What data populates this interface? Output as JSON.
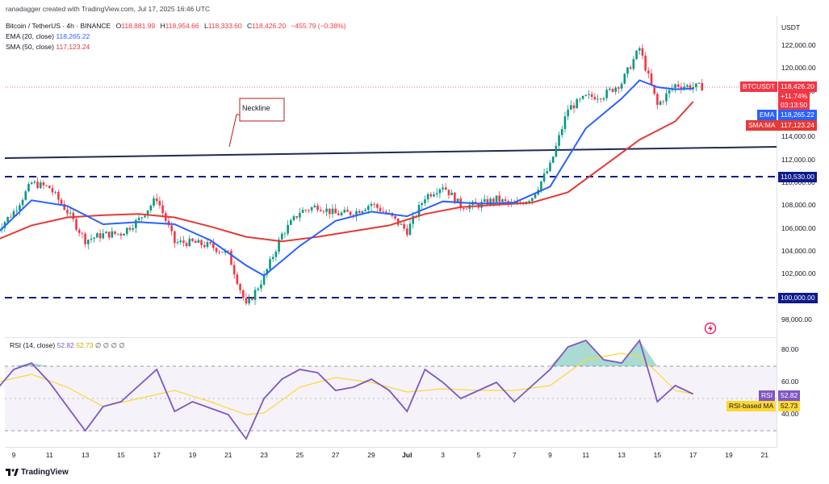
{
  "credit": "ranadagger created with TradingView.com, Jul 17, 2025 16:46 UTC",
  "symbol_line": "Bitcoin / TetherUS · 4h · BINANCE",
  "ohlc": {
    "o_label": "O",
    "o": "118,881.99",
    "h_label": "H",
    "h": "118,954.66",
    "l_label": "L",
    "l": "118,333.60",
    "c_label": "C",
    "c": "118,426.20",
    "change": "−455.79 (−0.38%)"
  },
  "ema_legend": {
    "label": "EMA (20, close)",
    "value": "118,265.22"
  },
  "sma_legend": {
    "label": "SMA (50, close)",
    "value": "117,123.24"
  },
  "currency": "USDT",
  "price_axis_ticks": [
    "122,000.00",
    "120,000.00",
    "118,000.00",
    "116,000.00",
    "114,000.00",
    "112,000.00",
    "110,000.00",
    "108,000.00",
    "106,000.00",
    "104,000.00",
    "102,000.00",
    "100,000.00",
    "98,000.00"
  ],
  "price_tag": {
    "symbol": "BTCUSDT",
    "price": "118,426.20",
    "change_pct": "+11.74%",
    "countdown": "03:13:50"
  },
  "ema_tag": {
    "label": "EMA",
    "value": "118,265.22"
  },
  "sma_tag": {
    "label": "SMA:MA",
    "value": "117,123.24"
  },
  "level_110": "110,530.00",
  "level_100": "100,000.00",
  "neckline_label": "Neckline",
  "rsi_legend": {
    "label": "RSI (14, close)",
    "rsi": "52.82",
    "ma": "52.73",
    "extra": "∅ ∅ ∅ ∅"
  },
  "rsi_axis_ticks": [
    "80.00",
    "60.00",
    "40.00"
  ],
  "rsi_tag": {
    "label": "RSI",
    "value": "52.82"
  },
  "rsi_ma_tag": {
    "label": "RSI-based MA",
    "value": "52.73"
  },
  "x_ticks": [
    "9",
    "11",
    "13",
    "15",
    "17",
    "19",
    "21",
    "23",
    "25",
    "27",
    "29",
    "Jul",
    "3",
    "5",
    "7",
    "9",
    "11",
    "13",
    "15",
    "17",
    "19",
    "21"
  ],
  "brand": "TradingView",
  "colors": {
    "up": "#089981",
    "down": "#f23645",
    "ema": "#2962ff",
    "sma": "#e53935",
    "rsi": "#7e57c2",
    "rsi_ma": "#fdd835",
    "levels": "#0d1b8c"
  },
  "chart_data": {
    "type": "candlestick",
    "interval": "4h",
    "x_range": [
      "Jun 8, 2025",
      "Jul 21, 2025"
    ],
    "ylim": [
      97000,
      123500
    ],
    "series": [
      {
        "name": "EMA (20, close)",
        "last": 118265.22
      },
      {
        "name": "SMA (50, close)",
        "last": 117123.24
      }
    ],
    "close_path": [
      [
        "Jun 8",
        105800
      ],
      [
        "Jun 9",
        107500
      ],
      [
        "Jun 10",
        110000
      ],
      [
        "Jun 11",
        109600
      ],
      [
        "Jun 12",
        107500
      ],
      [
        "Jun 13",
        105000
      ],
      [
        "Jun 14",
        105500
      ],
      [
        "Jun 15",
        105600
      ],
      [
        "Jun 16",
        106800
      ],
      [
        "Jun 17",
        108700
      ],
      [
        "Jun 18",
        104800
      ],
      [
        "Jun 19",
        104800
      ],
      [
        "Jun 20",
        104500
      ],
      [
        "Jun 21",
        103800
      ],
      [
        "Jun 22",
        99200
      ],
      [
        "Jun 23",
        101800
      ],
      [
        "Jun 24",
        105500
      ],
      [
        "Jun 25",
        107500
      ],
      [
        "Jun 26",
        108000
      ],
      [
        "Jun 27",
        107300
      ],
      [
        "Jun 28",
        107400
      ],
      [
        "Jun 29",
        108200
      ],
      [
        "Jun 30",
        107200
      ],
      [
        "Jul 1",
        105800
      ],
      [
        "Jul 2",
        108800
      ],
      [
        "Jul 3",
        109800
      ],
      [
        "Jul 4",
        108000
      ],
      [
        "Jul 5",
        108100
      ],
      [
        "Jul 6",
        108600
      ],
      [
        "Jul 7",
        108000
      ],
      [
        "Jul 8",
        108800
      ],
      [
        "Jul 9",
        111500
      ],
      [
        "Jul 10",
        116500
      ],
      [
        "Jul 11",
        117500
      ],
      [
        "Jul 12",
        117700
      ],
      [
        "Jul 13",
        118800
      ],
      [
        "Jul 14",
        121800
      ],
      [
        "Jul 15",
        116800
      ],
      [
        "Jul 16",
        118600
      ],
      [
        "Jul 17",
        118426.2
      ]
    ],
    "ema_path": [
      [
        "Jun 8",
        105500
      ],
      [
        "Jun 10",
        108500
      ],
      [
        "Jun 12",
        108000
      ],
      [
        "Jun 14",
        106400
      ],
      [
        "Jun 16",
        106600
      ],
      [
        "Jun 18",
        106400
      ],
      [
        "Jun 20",
        105000
      ],
      [
        "Jun 22",
        102800
      ],
      [
        "Jun 23",
        101900
      ],
      [
        "Jun 25",
        104500
      ],
      [
        "Jun 27",
        106700
      ],
      [
        "Jun 29",
        107500
      ],
      [
        "Jul 1",
        107100
      ],
      [
        "Jul 3",
        108400
      ],
      [
        "Jul 5",
        108200
      ],
      [
        "Jul 7",
        108300
      ],
      [
        "Jul 9",
        109700
      ],
      [
        "Jul 11",
        114800
      ],
      [
        "Jul 13",
        117400
      ],
      [
        "Jul 14",
        119000
      ],
      [
        "Jul 15",
        118400
      ],
      [
        "Jul 16",
        118200
      ],
      [
        "Jul 17",
        118265.22
      ]
    ],
    "sma_path": [
      [
        "Jun 8",
        105000
      ],
      [
        "Jun 10",
        106300
      ],
      [
        "Jun 12",
        107000
      ],
      [
        "Jun 14",
        107200
      ],
      [
        "Jun 16",
        107300
      ],
      [
        "Jun 18",
        107000
      ],
      [
        "Jun 20",
        106200
      ],
      [
        "Jun 22",
        105300
      ],
      [
        "Jun 24",
        104900
      ],
      [
        "Jun 26",
        105300
      ],
      [
        "Jun 28",
        105800
      ],
      [
        "Jun 30",
        106300
      ],
      [
        "Jul 2",
        107300
      ],
      [
        "Jul 4",
        107900
      ],
      [
        "Jul 6",
        108100
      ],
      [
        "Jul 8",
        108300
      ],
      [
        "Jul 10",
        109200
      ],
      [
        "Jul 12",
        111500
      ],
      [
        "Jul 14",
        113800
      ],
      [
        "Jul 16",
        115400
      ],
      [
        "Jul 17",
        117123.24
      ]
    ],
    "horizontal_levels": [
      110530,
      100000
    ],
    "neckline": [
      [
        "Jun 8",
        112200
      ],
      [
        "Jul 21",
        113100
      ]
    ],
    "rsi_panel": {
      "ylim": [
        20,
        90
      ],
      "bands": [
        30,
        50,
        70
      ],
      "rsi_path": [
        [
          "Jun 8",
          55
        ],
        [
          "Jun 9",
          68
        ],
        [
          "Jun 10",
          72
        ],
        [
          "Jun 11",
          60
        ],
        [
          "Jun 12",
          45
        ],
        [
          "Jun 13",
          30
        ],
        [
          "Jun 14",
          45
        ],
        [
          "Jun 15",
          48
        ],
        [
          "Jun 16",
          58
        ],
        [
          "Jun 17",
          68
        ],
        [
          "Jun 18",
          42
        ],
        [
          "Jun 19",
          48
        ],
        [
          "Jun 20",
          44
        ],
        [
          "Jun 21",
          40
        ],
        [
          "Jun 22",
          25
        ],
        [
          "Jun 23",
          50
        ],
        [
          "Jun 24",
          62
        ],
        [
          "Jun 25",
          68
        ],
        [
          "Jun 26",
          66
        ],
        [
          "Jun 27",
          55
        ],
        [
          "Jun 28",
          57
        ],
        [
          "Jun 29",
          62
        ],
        [
          "Jun 30",
          55
        ],
        [
          "Jul 1",
          42
        ],
        [
          "Jul 2",
          68
        ],
        [
          "Jul 3",
          60
        ],
        [
          "Jul 4",
          50
        ],
        [
          "Jul 5",
          55
        ],
        [
          "Jul 6",
          60
        ],
        [
          "Jul 7",
          48
        ],
        [
          "Jul 8",
          58
        ],
        [
          "Jul 9",
          68
        ],
        [
          "Jul 10",
          82
        ],
        [
          "Jul 11",
          86
        ],
        [
          "Jul 12",
          74
        ],
        [
          "Jul 13",
          72
        ],
        [
          "Jul 14",
          86
        ],
        [
          "Jul 15",
          48
        ],
        [
          "Jul 16",
          58
        ],
        [
          "Jul 17",
          52.82
        ]
      ],
      "ma_path": [
        [
          "Jun 8",
          60
        ],
        [
          "Jun 10",
          65
        ],
        [
          "Jun 12",
          57
        ],
        [
          "Jun 14",
          45
        ],
        [
          "Jun 16",
          50
        ],
        [
          "Jun 18",
          55
        ],
        [
          "Jun 20",
          48
        ],
        [
          "Jun 22",
          40
        ],
        [
          "Jun 23",
          41
        ],
        [
          "Jun 25",
          57
        ],
        [
          "Jun 27",
          63
        ],
        [
          "Jun 29",
          60
        ],
        [
          "Jul 1",
          54
        ],
        [
          "Jul 3",
          56
        ],
        [
          "Jul 5",
          55
        ],
        [
          "Jul 7",
          55
        ],
        [
          "Jul 9",
          58
        ],
        [
          "Jul 11",
          74
        ],
        [
          "Jul 13",
          78
        ],
        [
          "Jul 14",
          76
        ],
        [
          "Jul 15",
          66
        ],
        [
          "Jul 16",
          55
        ],
        [
          "Jul 17",
          52.73
        ]
      ]
    }
  }
}
